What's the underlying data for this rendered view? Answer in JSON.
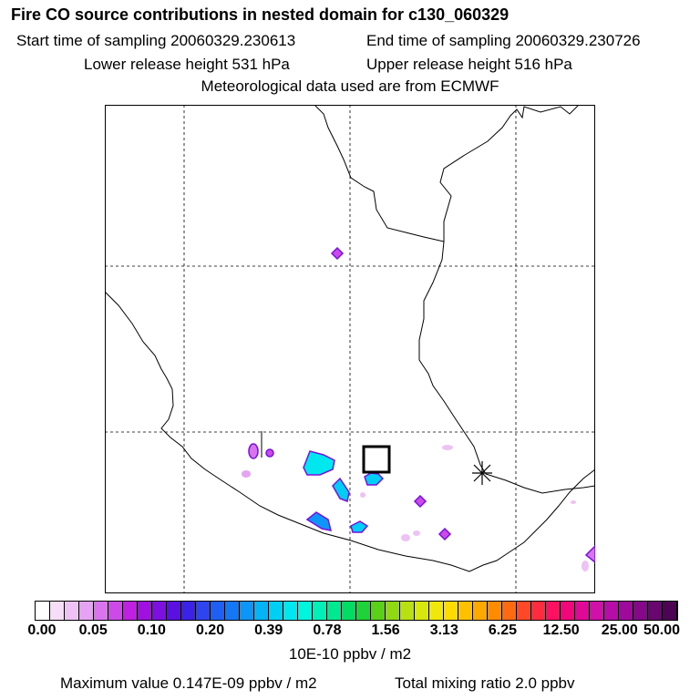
{
  "header": {
    "title": "Fire CO source contributions in nested domain for c130_060329",
    "start_time": "Start time of sampling 20060329.230613",
    "end_time": "End time of sampling 20060329.230726",
    "lower_height": "Lower release height  531 hPa",
    "upper_height": "Upper release height  516 hPa",
    "met_data": "Meteorological data used are from ECMWF"
  },
  "colorbar": {
    "ticks": [
      "0.00",
      "0.05",
      "0.10",
      "0.20",
      "0.39",
      "0.78",
      "1.56",
      "3.13",
      "6.25",
      "12.50",
      "25.00",
      "50.00"
    ],
    "units": "10E-10 ppbv / m2",
    "colors": [
      "#ffffff",
      "#f6ddf8",
      "#efc2f5",
      "#e6a3f3",
      "#d974ee",
      "#cc4ae8",
      "#bf20e2",
      "#a010e0",
      "#7d10e0",
      "#5a10e0",
      "#3c22e6",
      "#2e44ee",
      "#1f5ff4",
      "#1478f6",
      "#0d96f8",
      "#05b4f7",
      "#00cff5",
      "#00e8ef",
      "#00f5de",
      "#00f0b8",
      "#00e890",
      "#00dc64",
      "#20d23a",
      "#5ad018",
      "#90d814",
      "#b8e012",
      "#d8e80e",
      "#f0e80a",
      "#ffdc00",
      "#ffc000",
      "#ffa800",
      "#ff8c00",
      "#ff6a10",
      "#ff4828",
      "#ff2c40",
      "#ff1060",
      "#f0087a",
      "#e00896",
      "#d010a8",
      "#b80ca8",
      "#a00a9c",
      "#86088a",
      "#6a0670",
      "#4e0454"
    ]
  },
  "footer": {
    "max_value": "Maximum value  0.147E-09 ppbv / m2",
    "total_mixing": "Total mixing ratio       2.0 ppbv"
  }
}
